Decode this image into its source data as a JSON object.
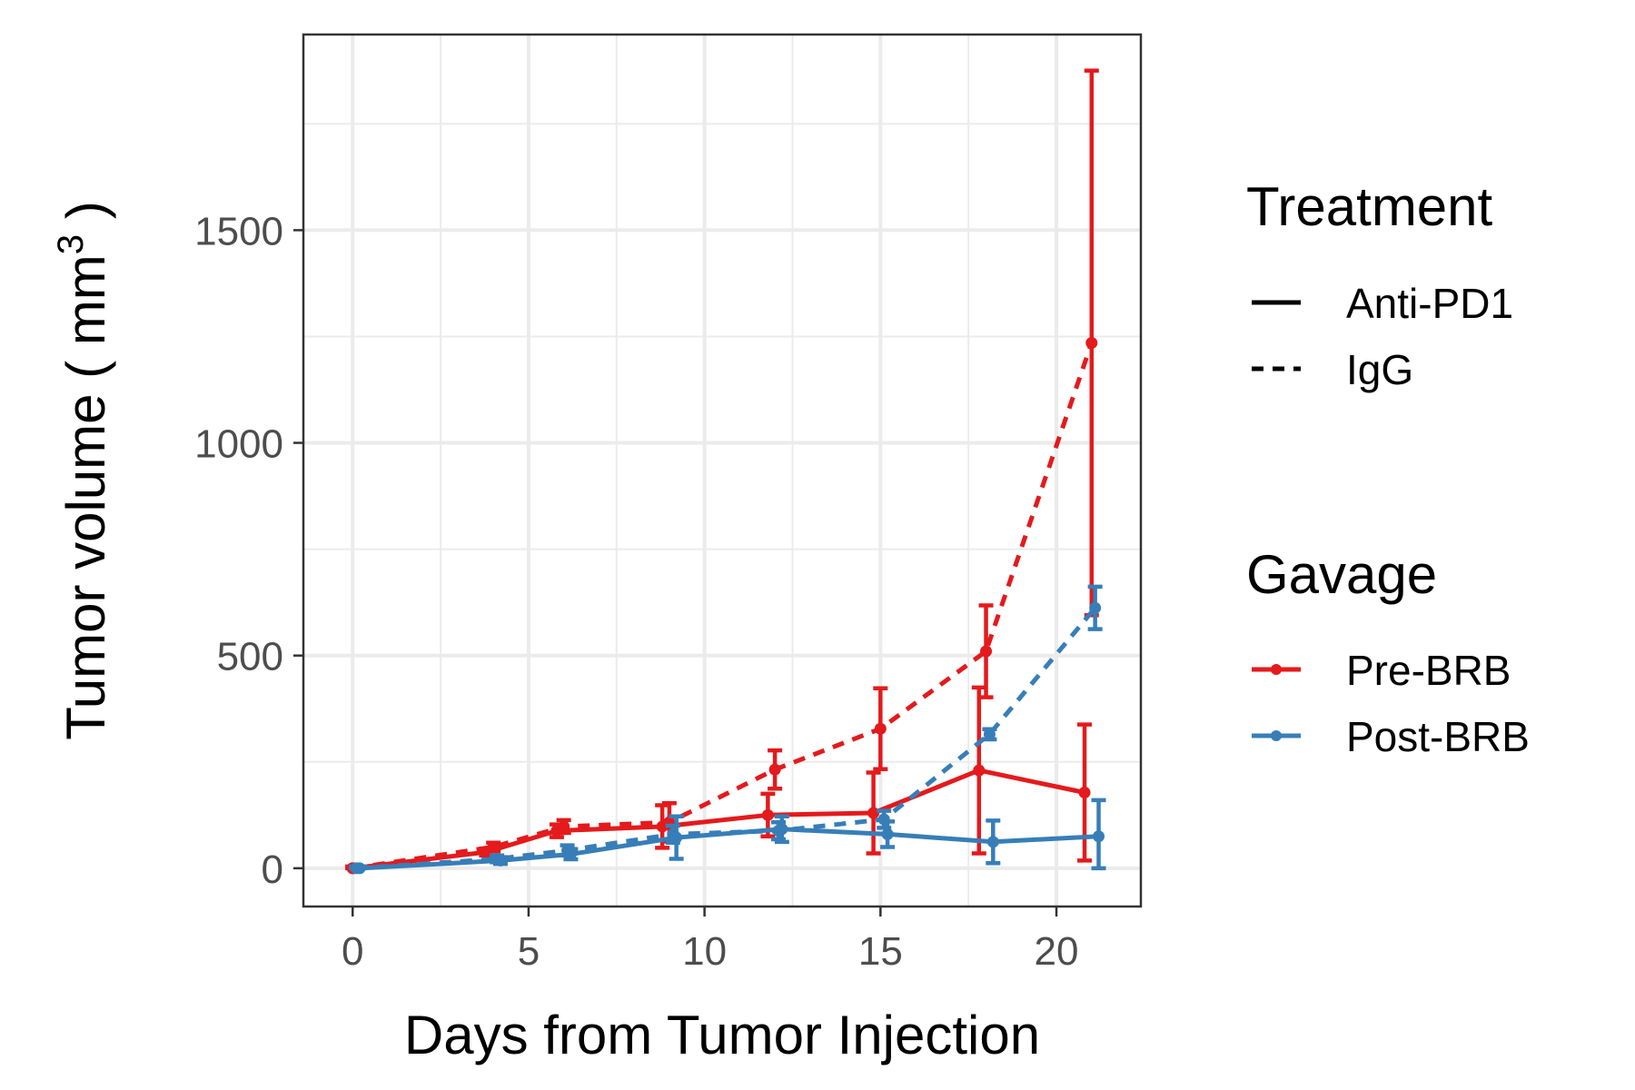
{
  "chart_data": {
    "type": "line",
    "xlabel": "Days from Tumor Injection",
    "ylabel_main": "Tumor volume ( mm",
    "ylabel_sup": "3",
    "ylabel_close": " )",
    "xlim": [
      -1.4,
      22.4
    ],
    "ylim": [
      -90,
      1960
    ],
    "x_ticks": [
      0,
      5,
      10,
      15,
      20
    ],
    "y_ticks": [
      0,
      500,
      1000,
      1500
    ],
    "x_ticks_labels": [
      "0",
      "5",
      "10",
      "15",
      "20"
    ],
    "y_ticks_labels": [
      "0",
      "500",
      "1000",
      "1500"
    ],
    "x_minor": [
      2.5,
      7.5,
      12.5,
      17.5
    ],
    "y_minor": [
      250,
      750,
      1250,
      1750
    ],
    "grid": true,
    "legend_placement": "right",
    "legends": {
      "treatment": {
        "title": "Treatment",
        "items": [
          {
            "label": "Anti-PD1",
            "linetype": "solid"
          },
          {
            "label": "IgG",
            "linetype": "dashed"
          }
        ]
      },
      "gavage": {
        "title": "Gavage",
        "items": [
          {
            "label": "Pre-BRB",
            "color": "#e41a1c"
          },
          {
            "label": "Post-BRB",
            "color": "#377eb8"
          }
        ]
      }
    },
    "colors": {
      "Pre-BRB": "#e41a1c",
      "Post-BRB": "#377eb8"
    },
    "series": [
      {
        "gavage": "Pre-BRB",
        "treatment": "Anti-PD1",
        "x": [
          0,
          3.8,
          5.8,
          8.8,
          11.8,
          14.8,
          17.8,
          20.8
        ],
        "y": [
          0,
          38,
          88,
          98,
          125,
          130,
          230,
          178
        ],
        "err": [
          4,
          8,
          15,
          50,
          50,
          95,
          195,
          160
        ]
      },
      {
        "gavage": "Pre-BRB",
        "treatment": "IgG",
        "x": [
          0,
          4.0,
          6.0,
          9.0,
          12.0,
          15.0,
          18.0,
          21.0
        ],
        "y": [
          0,
          50,
          98,
          108,
          232,
          328,
          510,
          1235
        ],
        "err": [
          4,
          10,
          15,
          45,
          45,
          95,
          108,
          640
        ]
      },
      {
        "gavage": "Post-BRB",
        "treatment": "Anti-PD1",
        "x": [
          0.2,
          4.2,
          6.2,
          9.2,
          12.2,
          15.2,
          18.2,
          21.2
        ],
        "y": [
          0,
          18,
          33,
          72,
          92,
          80,
          62,
          75
        ],
        "err": [
          4,
          8,
          12,
          50,
          30,
          30,
          50,
          85
        ]
      },
      {
        "gavage": "Post-BRB",
        "treatment": "IgG",
        "x": [
          0.1,
          4.1,
          6.1,
          9.1,
          12.1,
          15.1,
          18.1,
          21.1
        ],
        "y": [
          0,
          22,
          42,
          80,
          88,
          115,
          315,
          612
        ],
        "err": [
          4,
          8,
          12,
          20,
          20,
          20,
          12,
          50
        ]
      }
    ]
  }
}
